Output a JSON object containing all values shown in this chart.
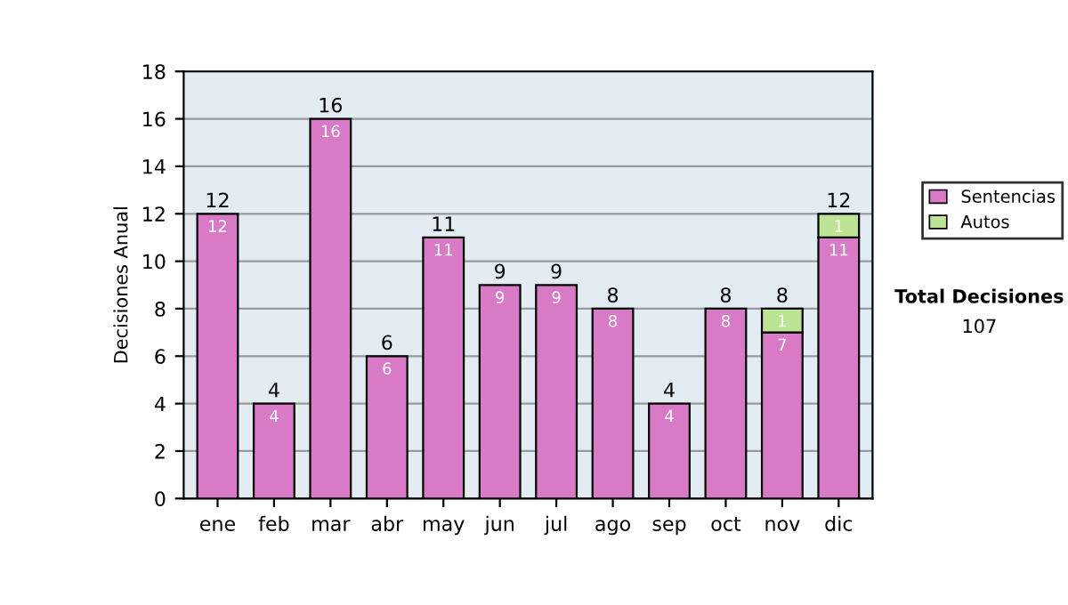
{
  "chart_data": {
    "type": "bar",
    "stacked": true,
    "ylabel": "Decisiones Anual",
    "categories": [
      "ene",
      "feb",
      "mar",
      "abr",
      "may",
      "jun",
      "jul",
      "ago",
      "sep",
      "oct",
      "nov",
      "dic"
    ],
    "series": [
      {
        "name": "Sentencias",
        "color": "#d97ac6",
        "values": [
          12,
          4,
          16,
          6,
          11,
          9,
          9,
          8,
          4,
          8,
          7,
          11
        ],
        "value_labels": [
          "12",
          "4",
          "16",
          "6",
          "11",
          "9",
          "9",
          "8",
          "4",
          "8",
          "7",
          "11"
        ]
      },
      {
        "name": "Autos",
        "color": "#bde394",
        "values": [
          null,
          null,
          null,
          null,
          null,
          null,
          null,
          null,
          null,
          null,
          1,
          1
        ],
        "value_labels": [
          null,
          null,
          null,
          null,
          null,
          null,
          null,
          null,
          null,
          null,
          "1",
          "1"
        ]
      }
    ],
    "totals": [
      "12",
      "4",
      "16",
      "6",
      "11",
      "9",
      "9",
      "8",
      "4",
      "8",
      "8",
      "12"
    ],
    "ylim": [
      0,
      18
    ],
    "yticks": [
      0,
      2,
      4,
      6,
      8,
      10,
      12,
      14,
      16,
      18
    ],
    "grid": "y",
    "legend": "right",
    "annotations": [
      "Total Decisiones",
      "107"
    ]
  }
}
